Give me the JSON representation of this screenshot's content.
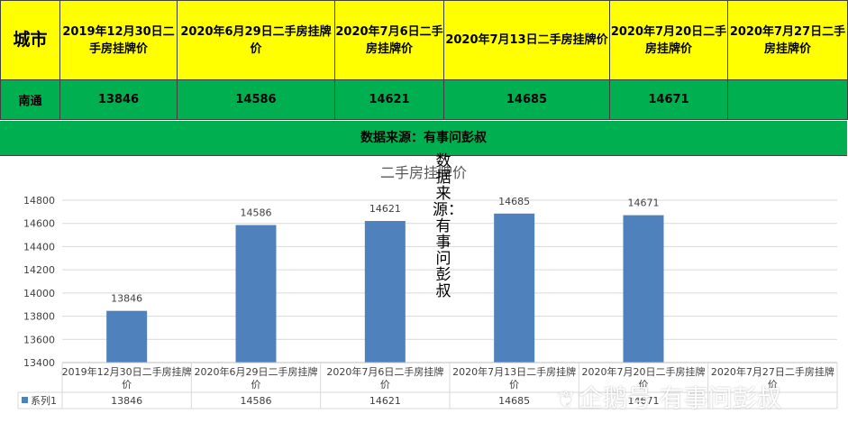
{
  "table": {
    "city_header": "城市",
    "date_headers": [
      "2019年12月30日二手房挂牌价",
      "2020年6月29日二手房挂牌价",
      "2020年7月6日二手房挂牌价",
      "2020年7月13日二手房挂牌价",
      "2020年7月20日二手房挂牌价",
      "2020年7月27日二手房挂牌价"
    ],
    "city": "南通",
    "values": [
      "13846",
      "14586",
      "14621",
      "14685",
      "14671",
      ""
    ]
  },
  "source_note": "数据来源：有事问彭叔",
  "vertical_note": "数据来源：有事问彭叔",
  "watermark": "企鹅号 有事问彭叔",
  "chart_data": {
    "type": "bar",
    "title": "二手房挂牌价",
    "categories": [
      "2019年12月30日二手房挂牌价",
      "2020年6月29日二手房挂牌价",
      "2020年7月6日二手房挂牌价",
      "2020年7月13日二手房挂牌价",
      "2020年7月20日二手房挂牌价",
      "2020年7月27日二手房挂牌价"
    ],
    "series": [
      {
        "name": "系列1",
        "values": [
          13846,
          14586,
          14621,
          14685,
          14671,
          null
        ],
        "color": "#4f81bd"
      }
    ],
    "ylim": [
      13400,
      14800
    ],
    "yticks": [
      13400,
      13600,
      13800,
      14000,
      14200,
      14400,
      14600,
      14800
    ],
    "grid": true,
    "data_table": true
  }
}
